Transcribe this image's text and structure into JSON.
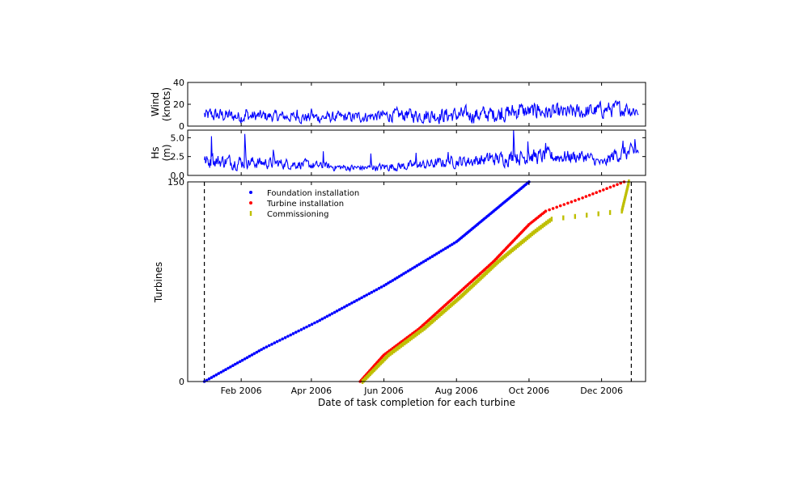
{
  "chart_data": {
    "type": "scatter",
    "panels": [
      {
        "id": "wind",
        "type": "line",
        "ylabel_lines": [
          "Wind",
          "(knots)"
        ],
        "ylim": [
          0,
          40
        ],
        "yticks": [
          0,
          20,
          40
        ],
        "color": "#0000ff",
        "wave_profile": [
          [
            0,
            9,
            9
          ],
          [
            8,
            10,
            9
          ],
          [
            16,
            10,
            9
          ],
          [
            24,
            9,
            8
          ],
          [
            40,
            9,
            8
          ],
          [
            60,
            9,
            7
          ],
          [
            80,
            8,
            7
          ],
          [
            100,
            8,
            7
          ],
          [
            120,
            8,
            7
          ],
          [
            140,
            9,
            7
          ],
          [
            160,
            10,
            8
          ],
          [
            180,
            10,
            9
          ],
          [
            200,
            10,
            10
          ],
          [
            220,
            10,
            10
          ],
          [
            240,
            11,
            10
          ],
          [
            250,
            11,
            10
          ],
          [
            260,
            13,
            11
          ],
          [
            280,
            13,
            10
          ],
          [
            300,
            12,
            10
          ],
          [
            320,
            13,
            10
          ],
          [
            335,
            15,
            10
          ],
          [
            350,
            16,
            10
          ],
          [
            365,
            14,
            9
          ]
        ],
        "spikes": [
          [
            5,
            16
          ],
          [
            35,
            15
          ],
          [
            78,
            15
          ],
          [
            90,
            16
          ],
          [
            170,
            14
          ],
          [
            250,
            17
          ],
          [
            265,
            20
          ],
          [
            280,
            20
          ],
          [
            300,
            18
          ],
          [
            345,
            21
          ],
          [
            355,
            20
          ]
        ]
      },
      {
        "id": "hs",
        "type": "line",
        "ylabel_lines": [
          "Hs",
          "(m)"
        ],
        "ylim": [
          0,
          6
        ],
        "yticks": [
          0.0,
          2.5,
          5.0
        ],
        "ytick_labels": [
          "0.0",
          "2.5",
          "5.0"
        ],
        "color": "#0000ff",
        "wave_profile": [
          [
            0,
            1.8,
            1.3
          ],
          [
            15,
            1.9,
            1.3
          ],
          [
            30,
            1.8,
            1.3
          ],
          [
            45,
            1.7,
            1.1
          ],
          [
            60,
            1.6,
            1.0
          ],
          [
            80,
            1.5,
            0.9
          ],
          [
            100,
            1.2,
            0.7
          ],
          [
            120,
            1.0,
            0.6
          ],
          [
            140,
            1.0,
            0.6
          ],
          [
            160,
            1.2,
            0.8
          ],
          [
            180,
            1.3,
            0.9
          ],
          [
            200,
            1.7,
            1.0
          ],
          [
            220,
            1.9,
            1.1
          ],
          [
            240,
            2.1,
            1.2
          ],
          [
            260,
            2.4,
            1.4
          ],
          [
            280,
            2.5,
            1.4
          ],
          [
            300,
            2.5,
            1.3
          ],
          [
            320,
            2.5,
            1.2
          ],
          [
            335,
            1.5,
            0.8
          ],
          [
            345,
            2.8,
            1.4
          ],
          [
            365,
            3.0,
            1.5
          ]
        ],
        "spikes": [
          [
            6,
            5.2
          ],
          [
            34,
            5.5
          ],
          [
            58,
            3.4
          ],
          [
            100,
            3.2
          ],
          [
            140,
            2.9
          ],
          [
            178,
            3.0
          ],
          [
            205,
            3.1
          ],
          [
            240,
            3.0
          ],
          [
            260,
            6.0
          ],
          [
            272,
            4.5
          ],
          [
            287,
            4.3
          ],
          [
            352,
            4.6
          ],
          [
            362,
            4.8
          ]
        ]
      },
      {
        "id": "turbines",
        "type": "scatter",
        "xlabel": "Date of task completion for each turbine",
        "ylabel": "Turbines",
        "ylim": [
          0,
          150
        ],
        "yticks": [
          0,
          150
        ],
        "x_domain": [
          "2005-12-18",
          "2007-01-07"
        ],
        "x_ticks": [
          {
            "date": "2006-02-01",
            "label": "Feb 2006"
          },
          {
            "date": "2006-04-01",
            "label": "Apr 2006"
          },
          {
            "date": "2006-06-01",
            "label": "Jun 2006"
          },
          {
            "date": "2006-08-01",
            "label": "Aug 2006"
          },
          {
            "date": "2006-10-01",
            "label": "Oct 2006"
          },
          {
            "date": "2006-12-01",
            "label": "Dec 2006"
          }
        ],
        "vlines": [
          "2006-01-01",
          "2006-12-26"
        ],
        "legend_position": "upper-left",
        "series": [
          {
            "name": "Foundation installation",
            "color": "#0000ff",
            "marker": "dot",
            "count": 150,
            "anchors": [
              [
                "2006-01-01",
                0
              ],
              [
                "2006-02-20",
                25
              ],
              [
                "2006-04-06",
                45
              ],
              [
                "2006-06-01",
                72
              ],
              [
                "2006-08-01",
                105
              ],
              [
                "2006-10-01",
                150
              ]
            ]
          },
          {
            "name": "Turbine installation",
            "color": "#ff0000",
            "marker": "dot",
            "count": 150,
            "anchors": [
              [
                "2006-05-12",
                0
              ],
              [
                "2006-06-01",
                20
              ],
              [
                "2006-07-01",
                40
              ],
              [
                "2006-08-01",
                65
              ],
              [
                "2006-09-01",
                90
              ],
              [
                "2006-10-01",
                118
              ],
              [
                "2006-10-15",
                128
              ],
              [
                "2006-11-15",
                138
              ],
              [
                "2006-12-20",
                150
              ]
            ]
          },
          {
            "name": "Commissioning",
            "color": "#bfbf00",
            "marker": "bar",
            "count": 150,
            "anchors": [
              [
                "2006-05-14",
                0
              ],
              [
                "2006-06-05",
                20
              ],
              [
                "2006-07-05",
                40
              ],
              [
                "2006-08-05",
                64
              ],
              [
                "2006-09-05",
                90
              ],
              [
                "2006-10-05",
                112
              ],
              [
                "2006-10-20",
                122
              ],
              [
                "2006-12-18",
                128
              ],
              [
                "2006-12-24",
                150
              ]
            ]
          }
        ]
      }
    ]
  }
}
